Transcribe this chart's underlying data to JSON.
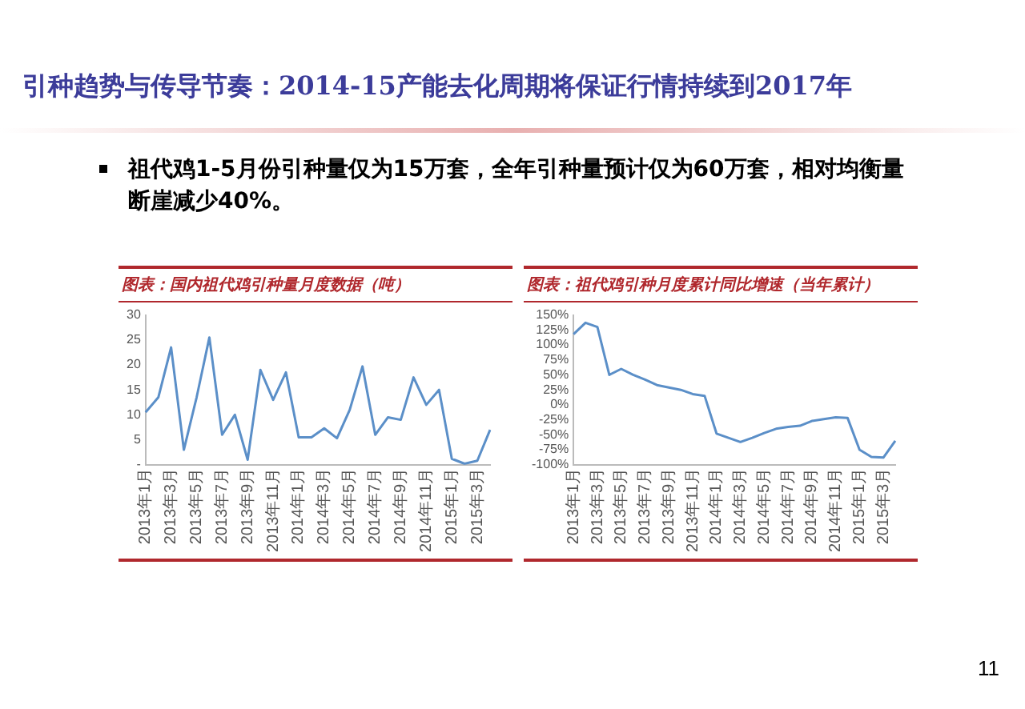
{
  "chart_data": [
    {
      "type": "other",
      "title": "引种趋势与传导节奏：2014-15产能去化周期将保证行情持续到2017年",
      "annotations": [
        "祖代鸡1-5月份引种量仅为15万套，全年引种量预计仅为60万套，相对均衡量断崖减少40%。",
        "11"
      ]
    },
    {
      "type": "line",
      "title": "图表：国内祖代鸡引种量月度数据（吨）",
      "categories": [
        "2013年1月",
        null,
        "2013年3月",
        null,
        "2013年5月",
        null,
        "2013年7月",
        null,
        "2013年9月",
        null,
        "2013年11月",
        null,
        "2014年1月",
        null,
        "2014年3月",
        null,
        "2014年5月",
        null,
        "2014年7月",
        null,
        "2014年9月",
        null,
        "2014年11月",
        null,
        "2015年1月",
        null,
        "2015年3月",
        null
      ],
      "series": [
        {
          "color": "#5b8fc8",
          "values": [
            10.5,
            13.5,
            23.5,
            3,
            13.5,
            25.5,
            6,
            10,
            1,
            19,
            13,
            18.5,
            5.5,
            5.5,
            7.3,
            5.3,
            11,
            19.7,
            6,
            9.5,
            9,
            17.5,
            12,
            15,
            1.2,
            0.2,
            0.8,
            7
          ]
        }
      ],
      "ylim": [
        0,
        30
      ],
      "yticks": [
        {
          "value": 0,
          "label": "-"
        },
        5,
        10,
        15,
        20,
        25,
        30
      ]
    },
    {
      "type": "line",
      "title": "图表：祖代鸡引种月度累计同比增速（当年累计）",
      "categories": [
        "2013年1月",
        null,
        "2013年3月",
        null,
        "2013年5月",
        null,
        "2013年7月",
        null,
        "2013年9月",
        null,
        "2013年11月",
        null,
        "2014年1月",
        null,
        "2014年3月",
        null,
        "2014年5月",
        null,
        "2014年7月",
        null,
        "2014年9月",
        null,
        "2014年11月",
        null,
        "2015年1月",
        null,
        "2015年3月",
        null
      ],
      "series": [
        {
          "color": "#5b8fc8",
          "values": [
            118,
            137,
            130,
            50,
            60,
            50,
            42,
            33,
            29,
            25,
            18,
            15,
            -48,
            -55,
            -62,
            -55,
            -47,
            -40,
            -37,
            -35,
            -27,
            -24,
            -21,
            -22,
            -75,
            -87,
            -88,
            -60
          ]
        }
      ],
      "ylim": [
        -100,
        150
      ],
      "yticks": [
        {
          "value": -100,
          "label": "-100%"
        },
        {
          "value": -75,
          "label": "-75%"
        },
        {
          "value": -50,
          "label": "-50%"
        },
        {
          "value": -25,
          "label": "-25%"
        },
        {
          "value": 0,
          "label": "0%"
        },
        {
          "value": 25,
          "label": "25%"
        },
        {
          "value": 50,
          "label": "50%"
        },
        {
          "value": 75,
          "label": "75%"
        },
        {
          "value": 100,
          "label": "100%"
        },
        {
          "value": 125,
          "label": "125%"
        },
        {
          "value": 150,
          "label": "150%"
        }
      ]
    }
  ]
}
